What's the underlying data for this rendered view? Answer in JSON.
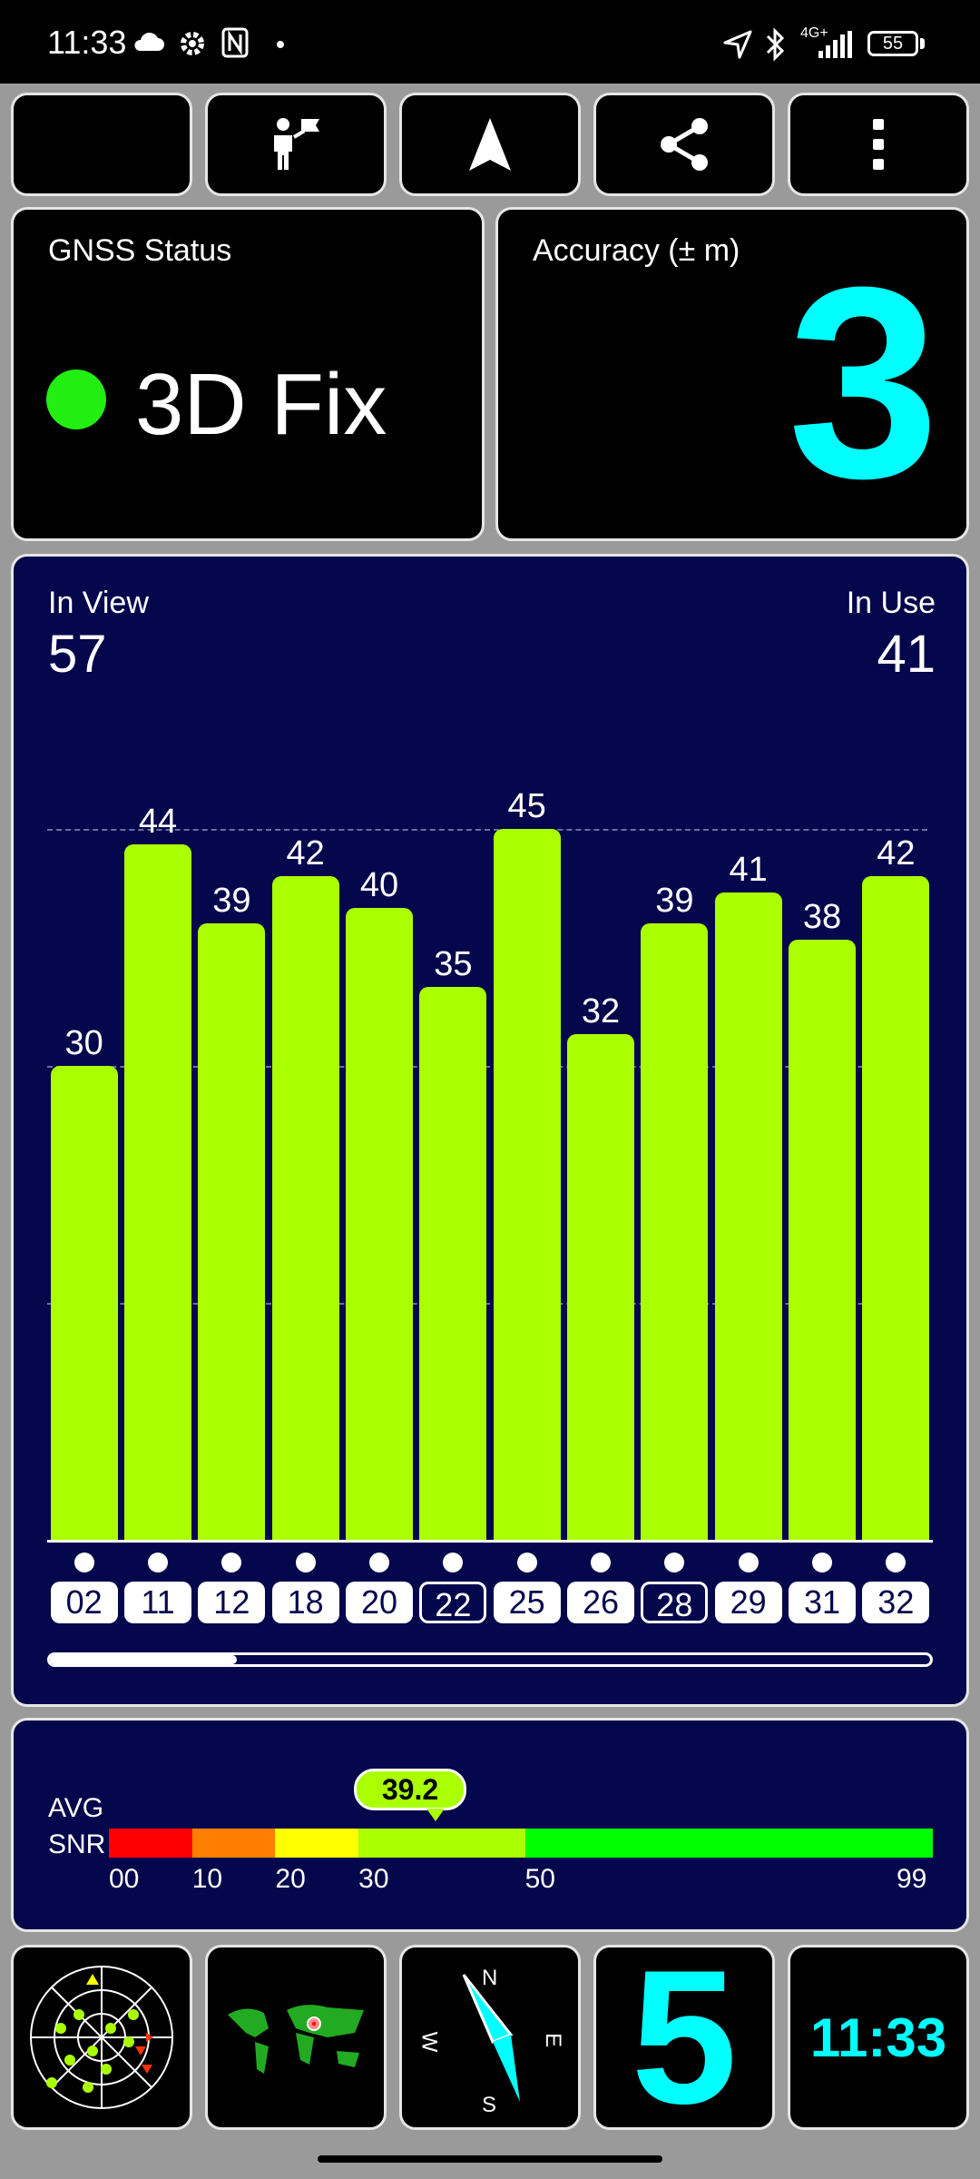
{
  "status_bar": {
    "time": "11:33",
    "network": "4G+",
    "battery": "55",
    "icons": [
      "cloud-icon",
      "settings-icon",
      "nfc-icon",
      "dot-icon",
      "location-arrow-icon",
      "bluetooth-icon",
      "signal-icon",
      "battery-icon"
    ]
  },
  "toolbar": {
    "items": [
      {
        "name": "night-mode",
        "icon": "moon-icon"
      },
      {
        "name": "poi",
        "icon": "person-flag-icon"
      },
      {
        "name": "navigate",
        "icon": "navigation-arrow-icon"
      },
      {
        "name": "share",
        "icon": "share-icon"
      },
      {
        "name": "more",
        "icon": "more-vert-icon"
      }
    ]
  },
  "gnss": {
    "label": "GNSS Status",
    "status": "3D Fix",
    "indicator_color": "#22ee11"
  },
  "accuracy": {
    "label": "Accuracy (± m)",
    "value": "3"
  },
  "satellites": {
    "in_view_label": "In View",
    "in_view": "57",
    "in_use_label": "In Use",
    "in_use": "41"
  },
  "chart_data": {
    "type": "bar",
    "categories": [
      "02",
      "11",
      "12",
      "18",
      "20",
      "22",
      "25",
      "26",
      "28",
      "29",
      "31",
      "32"
    ],
    "values": [
      30,
      44,
      39,
      42,
      40,
      35,
      45,
      32,
      39,
      41,
      38,
      42
    ],
    "in_use": [
      true,
      true,
      true,
      true,
      true,
      false,
      true,
      true,
      false,
      true,
      true,
      true
    ],
    "ylim": [
      0,
      60
    ],
    "grid": true,
    "bar_color": "#aaff00",
    "background": "#05074d"
  },
  "snr": {
    "label_line1": "AVG",
    "label_line2": "SNR",
    "avg": "39.2",
    "avg_value": 39.2,
    "ticks": [
      "00",
      "10",
      "20",
      "30",
      "50",
      "99"
    ],
    "segments": [
      {
        "from": 0,
        "to": 10,
        "color": "#ff0000"
      },
      {
        "from": 10,
        "to": 20,
        "color": "#ff7f00"
      },
      {
        "from": 20,
        "to": 30,
        "color": "#ffff00"
      },
      {
        "from": 30,
        "to": 50,
        "color": "#aaff00"
      },
      {
        "from": 50,
        "to": 99,
        "color": "#00ff00"
      }
    ]
  },
  "bottom_tiles": {
    "radar": "sky-plot-icon",
    "map": "world-map-icon",
    "compass": {
      "n": "N",
      "e": "E",
      "s": "S",
      "w": "W"
    },
    "big_number": "5",
    "clock": "11:33"
  },
  "colors": {
    "accent": "#00ffff",
    "panel_navy": "#05074d",
    "green": "#aaff00"
  }
}
